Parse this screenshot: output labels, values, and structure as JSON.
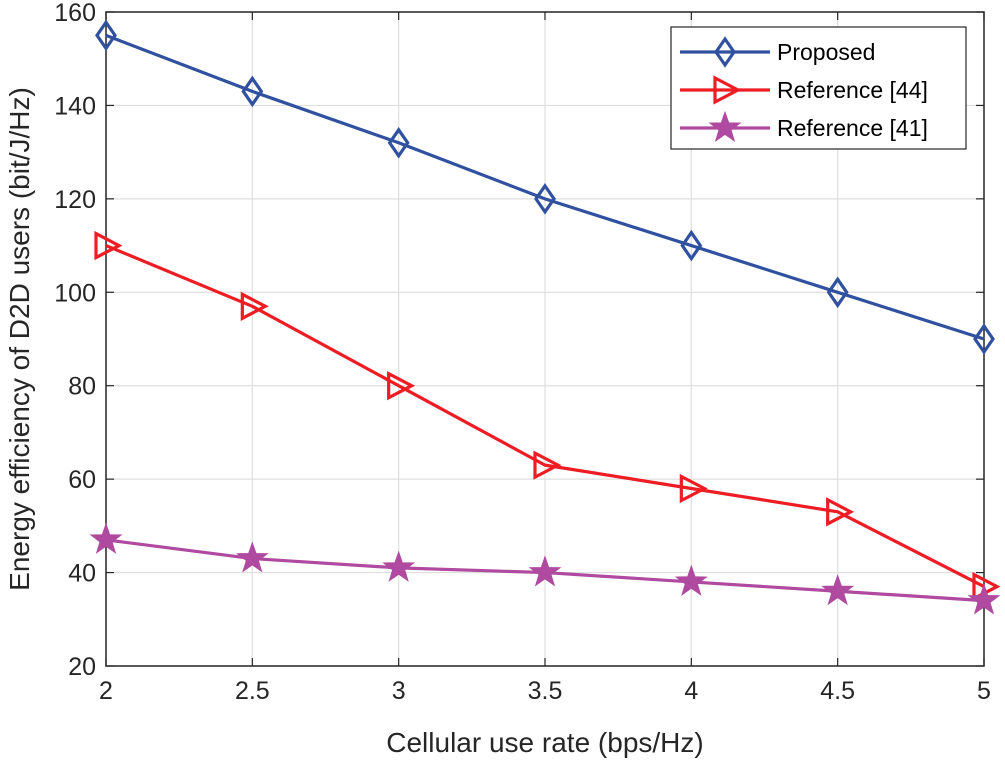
{
  "chart_data": {
    "type": "line",
    "title": "",
    "xlabel": "Cellular use rate (bps/Hz)",
    "ylabel": "Energy efficiency of D2D users (bit/J/Hz)",
    "x": [
      2,
      2.5,
      3,
      3.5,
      4,
      4.5,
      5
    ],
    "xlim": [
      2,
      5
    ],
    "ylim": [
      20,
      160
    ],
    "xticks": [
      "2",
      "2.5",
      "3",
      "3.5",
      "4",
      "4.5",
      "5"
    ],
    "yticks": [
      "20",
      "40",
      "60",
      "80",
      "100",
      "120",
      "140",
      "160"
    ],
    "grid": true,
    "legend_position": "top-right",
    "series": [
      {
        "name": "Proposed",
        "marker": "diamond",
        "color": "#3050A0",
        "values": [
          155,
          143,
          132,
          120,
          110,
          100,
          90
        ]
      },
      {
        "name": "Reference [44]",
        "marker": "triangle-right",
        "color": "#EE1D23",
        "values": [
          110,
          97,
          80,
          63,
          58,
          53,
          37
        ]
      },
      {
        "name": "Reference [41]",
        "marker": "pentagram",
        "color": "#B04AA0",
        "values": [
          47,
          43,
          41,
          40,
          38,
          36,
          34
        ]
      }
    ]
  }
}
